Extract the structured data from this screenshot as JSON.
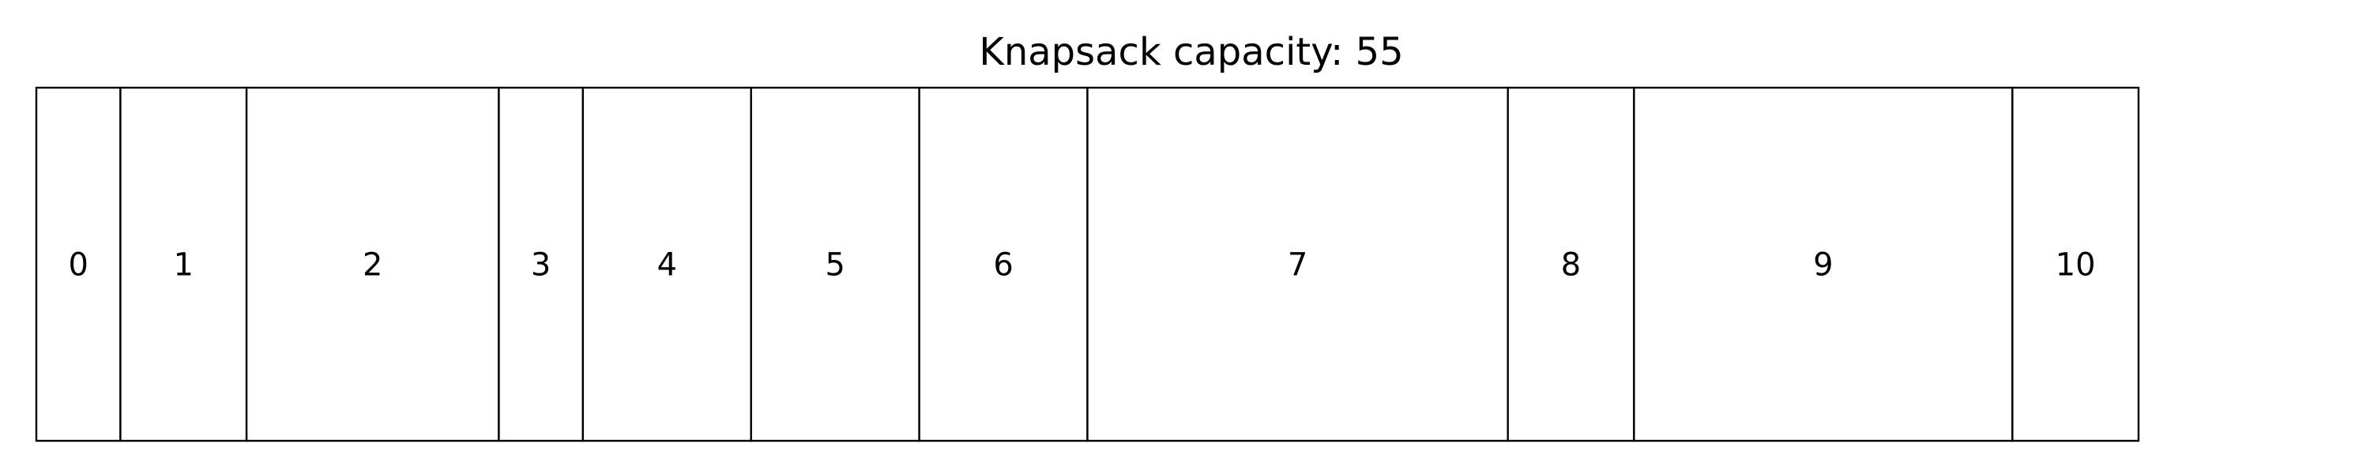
{
  "title": "Knapsack capacity: 55",
  "total_units": 50,
  "items": [
    {
      "label": "0",
      "size": 2
    },
    {
      "label": "1",
      "size": 3
    },
    {
      "label": "2",
      "size": 6
    },
    {
      "label": "3",
      "size": 2
    },
    {
      "label": "4",
      "size": 4
    },
    {
      "label": "5",
      "size": 4
    },
    {
      "label": "6",
      "size": 4
    },
    {
      "label": "7",
      "size": 10
    },
    {
      "label": "8",
      "size": 3
    },
    {
      "label": "9",
      "size": 9
    },
    {
      "label": "10",
      "size": 3
    }
  ],
  "colors": {
    "slot_fill": "#ffffff",
    "slot_stroke": "#000000",
    "text": "#000000"
  }
}
